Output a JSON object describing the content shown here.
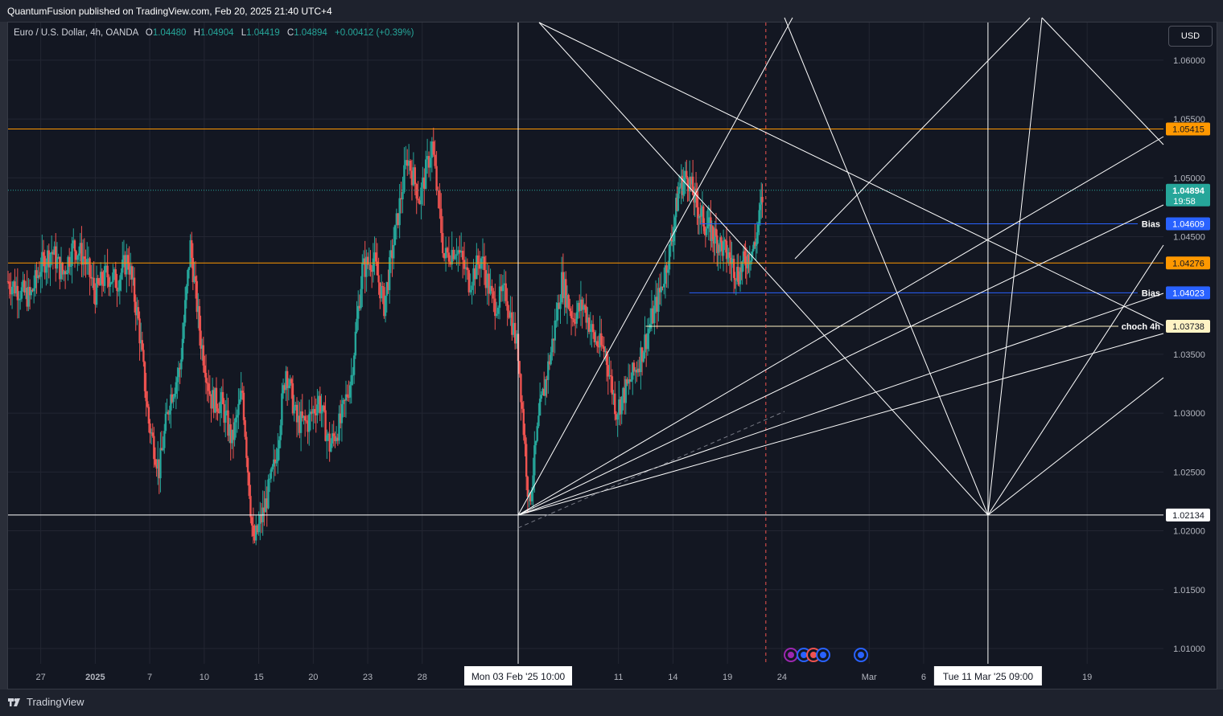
{
  "header": {
    "published": "QuantumFusion published on TradingView.com, Feb 20, 2025 21:40 UTC+4"
  },
  "footer": {
    "brand": "TradingView"
  },
  "legend": {
    "symbol": "Euro / U.S. Dollar, 4h, OANDA",
    "o_label": "O",
    "o": "1.04480",
    "h_label": "H",
    "h": "1.04904",
    "l_label": "L",
    "l": "1.04419",
    "c_label": "C",
    "c": "1.04894",
    "change": "+0.00412 (+0.39%)"
  },
  "currency_button": "USD",
  "colors": {
    "up": "#26a69a",
    "down": "#ef5350",
    "orange": "#ff9800",
    "blue": "#2962ff",
    "bg": "#131722",
    "white": "#ffffff"
  },
  "chart_data": {
    "type": "candlestick",
    "symbol": "EURUSD",
    "timeframe": "4h",
    "y_ticks": [
      1.06,
      1.055,
      1.05,
      1.045,
      1.04,
      1.035,
      1.03,
      1.025,
      1.02,
      1.015,
      1.01
    ],
    "y_tick_labels": [
      "1.06000",
      "1.05500",
      "1.05000",
      "1.04500",
      "1.04000",
      "1.03500",
      "1.03000",
      "1.02500",
      "1.02000",
      "1.01500",
      "1.01000"
    ],
    "ylim": [
      1.0087,
      1.0632
    ],
    "x_labels": [
      "27",
      "2025",
      "7",
      "10",
      "15",
      "20",
      "23",
      "28",
      "11",
      "14",
      "19",
      "24",
      "Mar",
      "6",
      "19"
    ],
    "x_label_times": [
      3,
      8,
      13,
      18,
      23,
      28,
      33,
      38,
      56,
      61,
      66,
      71,
      79,
      84,
      99
    ],
    "xlim": [
      0,
      106
    ],
    "series": [
      {
        "name": "",
        "segments": [
          {
            "t0": 0,
            "t1": 11,
            "values": [
              1.0412,
              1.0405,
              1.0398,
              1.0425,
              1.0438,
              1.0418,
              1.0442,
              1.0432,
              1.0402,
              1.0418,
              1.0412,
              1.0432
            ]
          },
          {
            "t0": 11,
            "t1": 21.5,
            "values": [
              1.0432,
              1.0378,
              1.0292,
              1.0252,
              1.0312,
              1.0338,
              1.0442,
              1.0362,
              1.0312,
              1.0308,
              1.0276,
              1.0318
            ]
          },
          {
            "t0": 21.5,
            "t1": 35.5,
            "values": [
              1.0318,
              1.0188,
              1.0218,
              1.0258,
              1.0338,
              1.0292,
              1.0292,
              1.0312,
              1.0272,
              1.0292,
              1.0332,
              1.0422,
              1.0432,
              1.0392,
              1.0452
            ]
          },
          {
            "t0": 35.5,
            "t1": 46.8,
            "values": [
              1.0452,
              1.0518,
              1.0482,
              1.0528,
              1.0432,
              1.0442,
              1.0412,
              1.0432,
              1.0392,
              1.0402,
              1.0352
            ]
          },
          {
            "t0": 46.8,
            "t1": 60.8,
            "values": [
              1.0352,
              1.0222,
              1.0302,
              1.0352,
              1.0412,
              1.0382,
              1.0392,
              1.0362,
              1.0352,
              1.0302,
              1.0322,
              1.0342,
              1.0372,
              1.0402,
              1.0442
            ]
          },
          {
            "t0": 60.8,
            "t1": 69.3,
            "values": [
              1.0442,
              1.0492,
              1.0502,
              1.0478,
              1.0462,
              1.0452,
              1.0442,
              1.0432,
              1.0418,
              1.0432,
              1.0442,
              1.0489
            ]
          }
        ]
      }
    ],
    "levels": [
      {
        "price": 1.05415,
        "label": "1.05415",
        "color": "#ff9800"
      },
      {
        "price": 1.04276,
        "label": "1.04276",
        "color": "#ff9800"
      },
      {
        "price": 1.04609,
        "label": "1.04609",
        "tag": "Bias",
        "color": "#2962ff"
      },
      {
        "price": 1.04023,
        "label": "1.04023",
        "tag": "Bias",
        "color": "#2962ff"
      },
      {
        "price": 1.03738,
        "label": "1.03738",
        "tag": "choch 4h",
        "color": "#fff3c4"
      },
      {
        "price": 1.02134,
        "label": "1.02134",
        "color": "#ffffff"
      }
    ],
    "last_price": {
      "price": 1.04894,
      "label": "1.04894",
      "countdown": "19:58"
    },
    "vertical_markers": [
      {
        "time": 46.8,
        "label": "Mon 03 Feb '25   10:00"
      },
      {
        "time": 89.9,
        "label": "Tue 11 Mar '25   09:00"
      }
    ],
    "current_time": 69.3,
    "annotations": {
      "grid": true,
      "tool": "Gann fan lines"
    }
  }
}
